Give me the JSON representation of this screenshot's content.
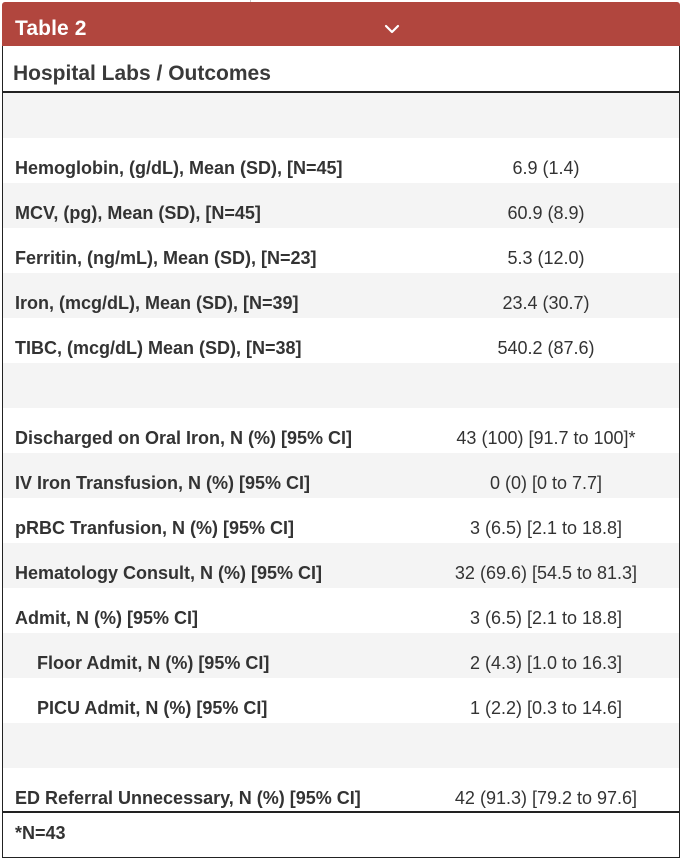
{
  "header": {
    "title": "Table 2"
  },
  "table": {
    "title": "Hospital Labs / Outcomes",
    "rows": [
      {
        "label": "",
        "value": ""
      },
      {
        "label": "Hemoglobin, (g/dL), Mean (SD), [N=45]",
        "value": "6.9 (1.4)"
      },
      {
        "label": "MCV, (pg), Mean (SD), [N=45]",
        "value": "60.9 (8.9)"
      },
      {
        "label": "Ferritin, (ng/mL), Mean (SD), [N=23]",
        "value": "5.3 (12.0)"
      },
      {
        "label": "Iron, (mcg/dL), Mean (SD), [N=39]",
        "value": "23.4 (30.7)"
      },
      {
        "label": "TIBC, (mcg/dL) Mean (SD), [N=38]",
        "value": "540.2 (87.6)"
      },
      {
        "label": "",
        "value": ""
      },
      {
        "label": "Discharged on Oral Iron, N (%) [95% CI]",
        "value": "43 (100) [91.7 to 100]*"
      },
      {
        "label": "IV Iron Transfusion, N (%) [95% CI]",
        "value": "0 (0) [0 to 7.7]"
      },
      {
        "label": "pRBC Tranfusion, N (%) [95% CI]",
        "value": "3 (6.5) [2.1 to 18.8]"
      },
      {
        "label": "Hematology Consult, N (%) [95% CI]",
        "value": "32 (69.6) [54.5 to 81.3]"
      },
      {
        "label": "Admit, N (%) [95% CI]",
        "value": "3 (6.5) [2.1 to 18.8]"
      },
      {
        "label": "Floor Admit, N (%) [95% CI]",
        "value": "2 (4.3) [1.0 to 16.3]"
      },
      {
        "label": "PICU Admit, N (%) [95% CI]",
        "value": "1 (2.2) [0.3 to 14.6]"
      },
      {
        "label": "",
        "value": ""
      },
      {
        "label": "ED Referral Unnecessary, N (%) [95% CI]",
        "value": "42 (91.3) [79.2 to 97.6]"
      }
    ],
    "footnote": "*N=43"
  },
  "colors": {
    "header": "#b1463e",
    "row_shade": "#f4f4f4"
  },
  "icons": {
    "header_toggle": "chevron-down-icon"
  }
}
